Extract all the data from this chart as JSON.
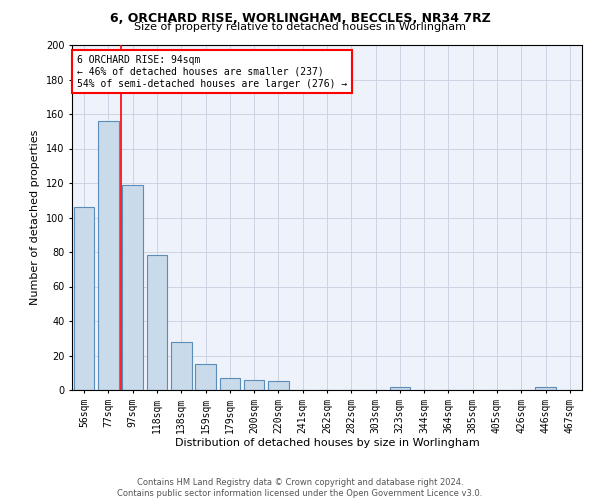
{
  "title1": "6, ORCHARD RISE, WORLINGHAM, BECCLES, NR34 7RZ",
  "title2": "Size of property relative to detached houses in Worlingham",
  "xlabel": "Distribution of detached houses by size in Worlingham",
  "ylabel": "Number of detached properties",
  "categories": [
    "56sqm",
    "77sqm",
    "97sqm",
    "118sqm",
    "138sqm",
    "159sqm",
    "179sqm",
    "200sqm",
    "220sqm",
    "241sqm",
    "262sqm",
    "282sqm",
    "303sqm",
    "323sqm",
    "344sqm",
    "364sqm",
    "385sqm",
    "405sqm",
    "426sqm",
    "446sqm",
    "467sqm"
  ],
  "values": [
    106,
    156,
    119,
    78,
    28,
    15,
    7,
    6,
    5,
    0,
    0,
    0,
    0,
    2,
    0,
    0,
    0,
    0,
    0,
    2,
    0
  ],
  "bar_color": "#c9daea",
  "bar_edge_color": "#5b8db8",
  "grid_color": "#c8cfe0",
  "background_color": "#eef2fa",
  "red_line_index": 2,
  "annotation_line1": "6 ORCHARD RISE: 94sqm",
  "annotation_line2": "← 46% of detached houses are smaller (237)",
  "annotation_line3": "54% of semi-detached houses are larger (276) →",
  "annotation_box_color": "white",
  "annotation_border_color": "red",
  "footer1": "Contains HM Land Registry data © Crown copyright and database right 2024.",
  "footer2": "Contains public sector information licensed under the Open Government Licence v3.0.",
  "ylim": [
    0,
    200
  ],
  "yticks": [
    0,
    20,
    40,
    60,
    80,
    100,
    120,
    140,
    160,
    180,
    200
  ],
  "title1_fontsize": 9,
  "title2_fontsize": 8,
  "ylabel_fontsize": 8,
  "xlabel_fontsize": 8,
  "tick_fontsize": 7,
  "annotation_fontsize": 7,
  "footer_fontsize": 6
}
